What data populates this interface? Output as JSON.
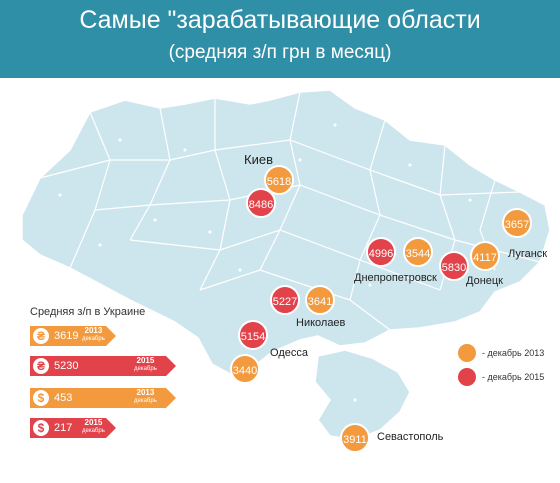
{
  "header": {
    "title": "Самые \"зарабатывающие области",
    "subtitle": "(средняя з/п грн в месяц)"
  },
  "colors": {
    "header_bg": "#2f8fa6",
    "map_fill": "#cde6ee",
    "dec_2013": "#f29a3d",
    "dec_2015": "#e2434a"
  },
  "cities": {
    "kiev": "Киев",
    "dnepr": "Днепропетровск",
    "donetsk": "Донецк",
    "lugansk": "Луганск",
    "nikolaev": "Николаев",
    "odessa": "Одесса",
    "sevastopol": "Севастополь"
  },
  "values": {
    "kiev_2013": "5618",
    "kiev_2015": "8486",
    "dnepr_2015": "4996",
    "dnepr_2013": "3544",
    "donetsk_2015": "5830",
    "donetsk_2013": "4117",
    "lugansk_2013": "3657",
    "nikolaev_2015": "5227",
    "nikolaev_2013": "3641",
    "odessa_2015": "5154",
    "odessa_2013": "3440",
    "sevastopol_2013": "3911"
  },
  "legend": {
    "dec_2013": "- декабрь 2013",
    "dec_2015": "- декабрь 2015"
  },
  "stats": {
    "title": "Средняя з/п в Украине",
    "month": "декабрь",
    "rows": [
      {
        "icon": "₴",
        "value": "3619",
        "year": "2013"
      },
      {
        "icon": "₴",
        "value": "5230",
        "year": "2015"
      },
      {
        "icon": "$",
        "value": "453",
        "year": "2013"
      },
      {
        "icon": "$",
        "value": "217",
        "year": "2015"
      }
    ]
  }
}
